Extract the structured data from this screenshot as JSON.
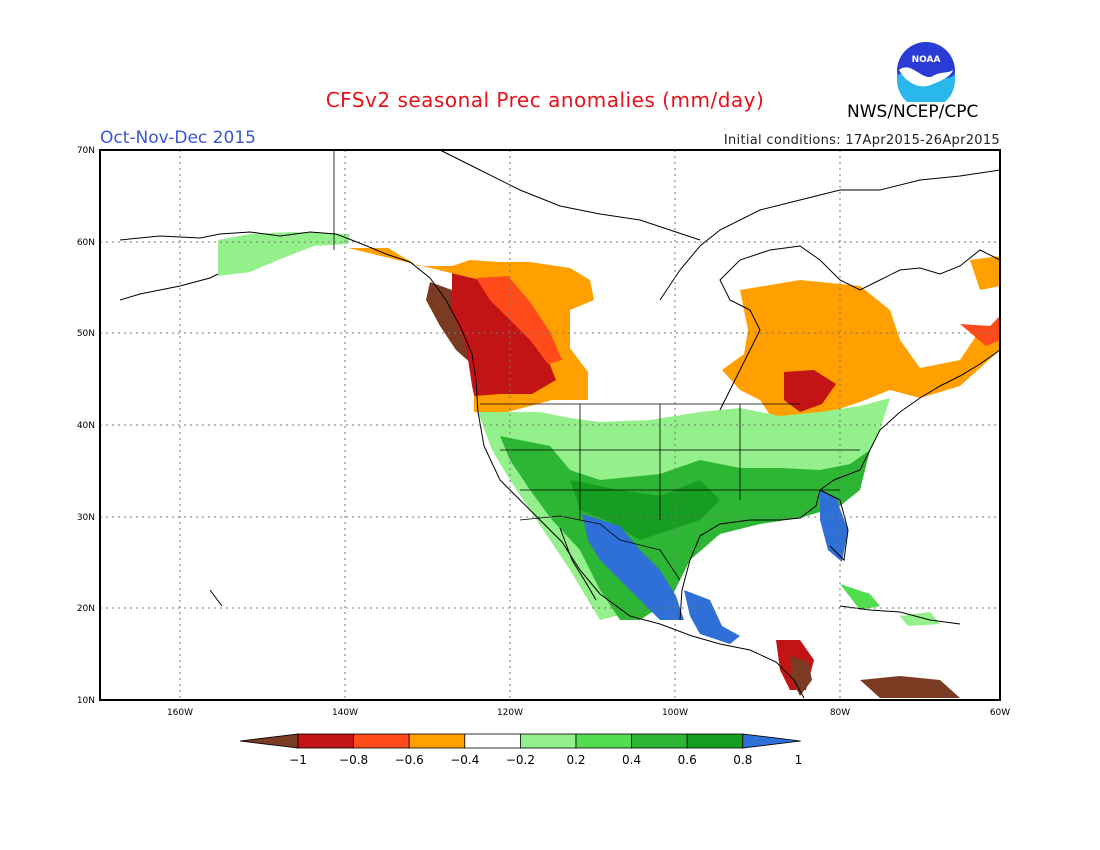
{
  "header": {
    "title": "CFSv2 seasonal Prec anomalies (mm/day)",
    "agency": "NWS/NCEP/CPC",
    "season": "Oct-Nov-Dec 2015",
    "initial_conditions": "Initial conditions: 17Apr2015-26Apr2015",
    "logo_text": "NOAA"
  },
  "map": {
    "lat_labels": [
      "70N",
      "60N",
      "50N",
      "40N",
      "30N",
      "20N",
      "10N"
    ],
    "lon_labels": [
      "160W",
      "140W",
      "120W",
      "100W",
      "80W",
      "60W"
    ],
    "extent": {
      "lon_min": -172,
      "lon_max": -60,
      "lat_min": 10,
      "lat_max": 70
    }
  },
  "colorbar": {
    "ticks": [
      "−1",
      "−0.8",
      "−0.6",
      "−0.4",
      "−0.2",
      "0.2",
      "0.4",
      "0.6",
      "0.8",
      "1"
    ],
    "colors": [
      "#7a3b22",
      "#c21414",
      "#ff4a1a",
      "#ffa000",
      "#ffffff",
      "#94f08a",
      "#52dd4f",
      "#2db634",
      "#179e22",
      "#2e6fd8"
    ]
  }
}
